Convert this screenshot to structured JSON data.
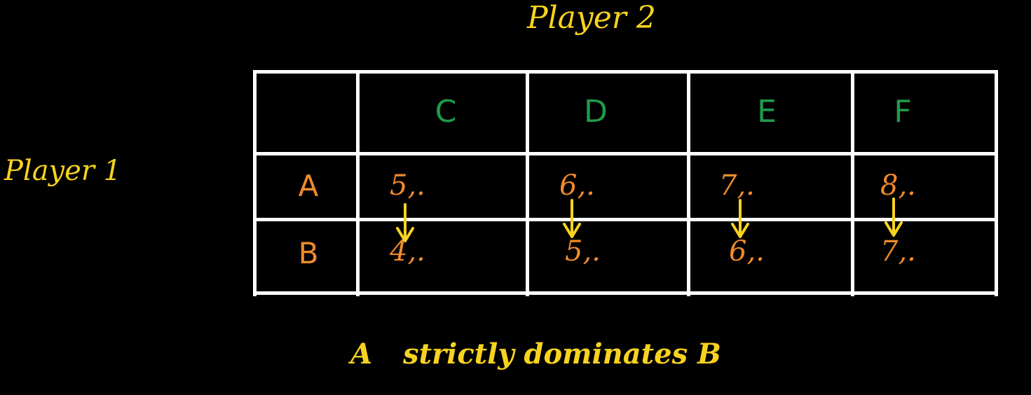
{
  "colors": {
    "background": "#000000",
    "grid": "#ffffff",
    "yellow": "#f7d31f",
    "green": "#1f9a4a",
    "orange": "#f08a2c"
  },
  "labels": {
    "player2": "Player 2",
    "player1": "Player 1",
    "caption_strategy": "A",
    "caption_text": "strictly dominates B"
  },
  "columns": [
    "C",
    "D",
    "E",
    "F"
  ],
  "rows": [
    {
      "label": "A",
      "payoffs": [
        "5,.",
        "6,.",
        "7,.",
        "8,."
      ]
    },
    {
      "label": "B",
      "payoffs": [
        "4,.",
        "5,.",
        "6,.",
        "7,."
      ]
    }
  ],
  "arrows": [
    {
      "column": "C",
      "from": "A",
      "to": "B",
      "icon": "arrow-down-icon"
    },
    {
      "column": "D",
      "from": "A",
      "to": "B",
      "icon": "arrow-down-icon"
    },
    {
      "column": "E",
      "from": "A",
      "to": "B",
      "icon": "arrow-down-icon"
    },
    {
      "column": "F",
      "from": "A",
      "to": "B",
      "icon": "arrow-down-icon"
    }
  ]
}
